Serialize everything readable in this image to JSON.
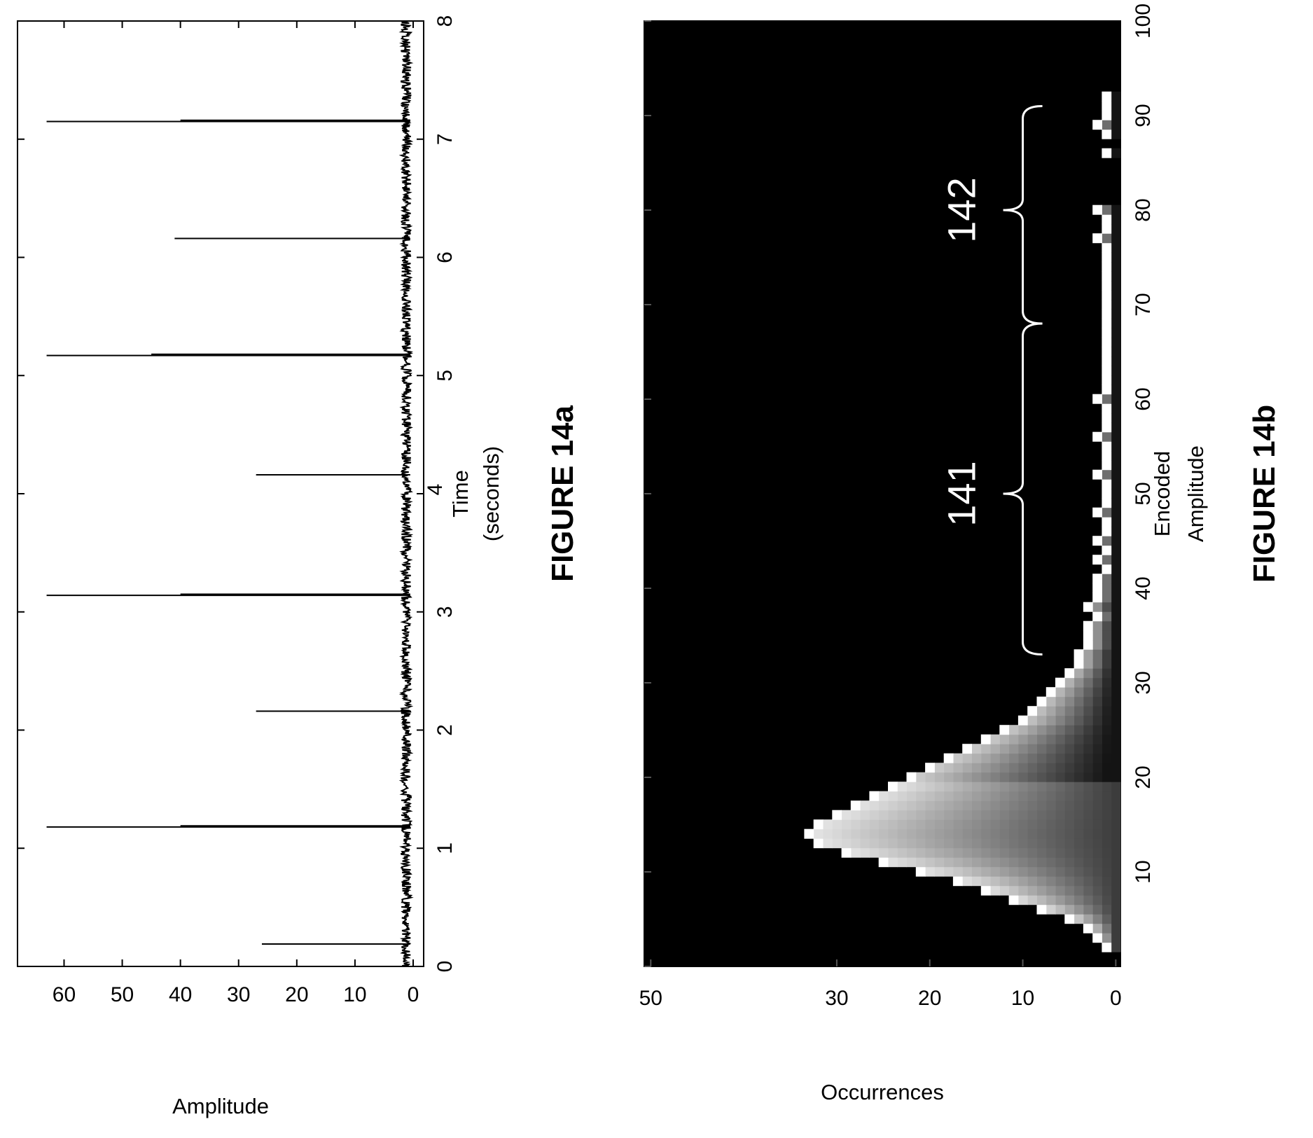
{
  "chart_data": [
    {
      "type": "line",
      "figure_label": "FIGURE 14a",
      "xlabel_lines": [
        "Time",
        "(seconds)"
      ],
      "ylabel": "Amplitude",
      "xlim": [
        0,
        8
      ],
      "ylim": [
        0,
        60
      ],
      "x_ticks": [
        0,
        1,
        2,
        3,
        4,
        5,
        6,
        7,
        8
      ],
      "y_ticks": [
        0,
        10,
        20,
        30,
        40,
        50,
        60
      ],
      "x_tick_labels": [
        "0",
        "1",
        "2",
        "3",
        "",
        "5",
        "6",
        "7",
        "8"
      ],
      "x_tick_label_4": "4",
      "y_tick_labels": [
        "0",
        "10",
        "20",
        "30",
        "40",
        "50",
        "60"
      ],
      "grid": false,
      "legend": "none",
      "noise_baseline": 1.2,
      "spikes": [
        {
          "x": 0.19,
          "y": 26
        },
        {
          "x": 1.18,
          "y": 63
        },
        {
          "x": 1.19,
          "y": 40
        },
        {
          "x": 2.16,
          "y": 27
        },
        {
          "x": 3.14,
          "y": 63
        },
        {
          "x": 3.15,
          "y": 40
        },
        {
          "x": 4.16,
          "y": 27
        },
        {
          "x": 5.17,
          "y": 63
        },
        {
          "x": 5.18,
          "y": 45
        },
        {
          "x": 6.16,
          "y": 41
        },
        {
          "x": 7.15,
          "y": 63
        },
        {
          "x": 7.16,
          "y": 40
        }
      ]
    },
    {
      "type": "heatmap",
      "figure_label": "FIGURE 14b",
      "xlabel_lines": [
        "Encoded",
        "Amplitude"
      ],
      "ylabel": "Occurrences",
      "xlim": [
        0,
        100
      ],
      "ylim": [
        0,
        50
      ],
      "x_ticks": [
        0,
        10,
        20,
        30,
        40,
        50,
        60,
        70,
        80,
        90,
        100
      ],
      "y_ticks": [
        0,
        10,
        20,
        30,
        50
      ],
      "x_tick_labels": [
        "",
        "10",
        "20",
        "30",
        "40",
        "50",
        "60",
        "70",
        "80",
        "90",
        "100"
      ],
      "y_tick_labels": [
        "0",
        "10",
        "20",
        "30",
        "50"
      ],
      "background": "#000000",
      "grid": false,
      "legend": "none",
      "envelope": [
        {
          "x": 2,
          "y": 1
        },
        {
          "x": 3,
          "y": 2
        },
        {
          "x": 4,
          "y": 3
        },
        {
          "x": 5,
          "y": 5
        },
        {
          "x": 6,
          "y": 8
        },
        {
          "x": 7,
          "y": 11
        },
        {
          "x": 8,
          "y": 14
        },
        {
          "x": 9,
          "y": 17
        },
        {
          "x": 10,
          "y": 21
        },
        {
          "x": 11,
          "y": 25
        },
        {
          "x": 12,
          "y": 29
        },
        {
          "x": 13,
          "y": 32
        },
        {
          "x": 14,
          "y": 33
        },
        {
          "x": 15,
          "y": 32
        },
        {
          "x": 16,
          "y": 30
        },
        {
          "x": 17,
          "y": 28
        },
        {
          "x": 18,
          "y": 26
        },
        {
          "x": 19,
          "y": 24
        },
        {
          "x": 20,
          "y": 22
        },
        {
          "x": 21,
          "y": 20
        },
        {
          "x": 22,
          "y": 18
        },
        {
          "x": 23,
          "y": 16
        },
        {
          "x": 24,
          "y": 14
        },
        {
          "x": 25,
          "y": 12
        },
        {
          "x": 26,
          "y": 10
        },
        {
          "x": 27,
          "y": 9
        },
        {
          "x": 28,
          "y": 8
        },
        {
          "x": 29,
          "y": 7
        },
        {
          "x": 30,
          "y": 6
        },
        {
          "x": 31,
          "y": 5
        },
        {
          "x": 32,
          "y": 4
        },
        {
          "x": 33,
          "y": 4
        },
        {
          "x": 34,
          "y": 3
        },
        {
          "x": 35,
          "y": 3
        },
        {
          "x": 36,
          "y": 3
        },
        {
          "x": 37,
          "y": 2
        },
        {
          "x": 38,
          "y": 3
        },
        {
          "x": 39,
          "y": 2
        },
        {
          "x": 40,
          "y": 2
        },
        {
          "x": 41,
          "y": 2
        },
        {
          "x": 42,
          "y": 1
        },
        {
          "x": 43,
          "y": 2
        },
        {
          "x": 44,
          "y": 1
        },
        {
          "x": 45,
          "y": 2
        },
        {
          "x": 46,
          "y": 1
        },
        {
          "x": 47,
          "y": 1
        },
        {
          "x": 48,
          "y": 2
        },
        {
          "x": 49,
          "y": 1
        },
        {
          "x": 50,
          "y": 1
        },
        {
          "x": 51,
          "y": 1
        },
        {
          "x": 52,
          "y": 2
        },
        {
          "x": 53,
          "y": 1
        },
        {
          "x": 54,
          "y": 1
        },
        {
          "x": 55,
          "y": 1
        },
        {
          "x": 56,
          "y": 2
        },
        {
          "x": 57,
          "y": 1
        },
        {
          "x": 58,
          "y": 1
        },
        {
          "x": 59,
          "y": 1
        },
        {
          "x": 60,
          "y": 2
        },
        {
          "x": 61,
          "y": 1
        },
        {
          "x": 62,
          "y": 1
        },
        {
          "x": 63,
          "y": 1
        },
        {
          "x": 64,
          "y": 1
        },
        {
          "x": 65,
          "y": 1
        },
        {
          "x": 66,
          "y": 1
        },
        {
          "x": 67,
          "y": 1
        },
        {
          "x": 68,
          "y": 1
        },
        {
          "x": 69,
          "y": 1
        },
        {
          "x": 70,
          "y": 1
        },
        {
          "x": 71,
          "y": 1
        },
        {
          "x": 72,
          "y": 1
        },
        {
          "x": 73,
          "y": 1
        },
        {
          "x": 74,
          "y": 1
        },
        {
          "x": 75,
          "y": 1
        },
        {
          "x": 76,
          "y": 1
        },
        {
          "x": 77,
          "y": 2
        },
        {
          "x": 78,
          "y": 1
        },
        {
          "x": 79,
          "y": 1
        },
        {
          "x": 80,
          "y": 2
        },
        {
          "x": 86,
          "y": 1
        },
        {
          "x": 88,
          "y": 1
        },
        {
          "x": 89,
          "y": 2
        },
        {
          "x": 90,
          "y": 1
        },
        {
          "x": 91,
          "y": 1
        },
        {
          "x": 92,
          "y": 1
        }
      ],
      "annotations": [
        {
          "text": "141",
          "from_x": 33,
          "to_x": 68,
          "brace_tip_x": 50,
          "y_level": 10
        },
        {
          "text": "142",
          "from_x": 68,
          "to_x": 91,
          "brace_tip_x": 80,
          "y_level": 10
        }
      ]
    }
  ]
}
